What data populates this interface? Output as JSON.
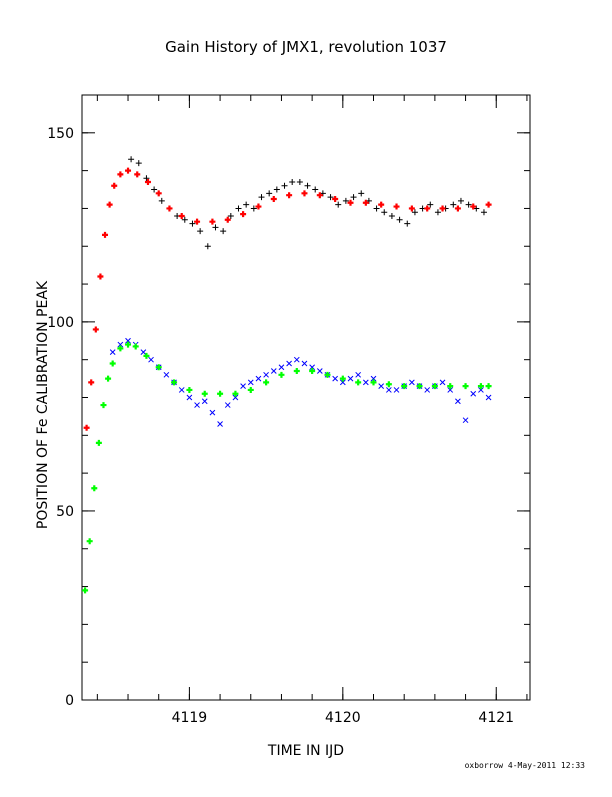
{
  "chart_data": {
    "type": "scatter",
    "title": "Gain History of JMX1, revolution 1037",
    "xlabel": "TIME IN IJD",
    "ylabel": "POSITION OF Fe CALIBRATION PEAK",
    "xlim": [
      4118.3,
      4121.22
    ],
    "ylim": [
      0,
      160
    ],
    "x_ticks": [
      4119,
      4120,
      4121
    ],
    "x_tick_labels": [
      "4119",
      "4120",
      "4121"
    ],
    "y_ticks": [
      0,
      50,
      100,
      150
    ],
    "y_tick_labels": [
      "0",
      "50",
      "100",
      "150"
    ],
    "grid": false,
    "legend": "none",
    "series": [
      {
        "role": "upper-peak-points",
        "marker": "plus",
        "color": "#000000",
        "x": [
          4118.62,
          4118.67,
          4118.72,
          4118.77,
          4118.82,
          4118.87,
          4118.92,
          4118.97,
          4119.02,
          4119.07,
          4119.12,
          4119.17,
          4119.22,
          4119.27,
          4119.32,
          4119.37,
          4119.42,
          4119.47,
          4119.52,
          4119.57,
          4119.62,
          4119.67,
          4119.72,
          4119.77,
          4119.82,
          4119.87,
          4119.92,
          4119.97,
          4120.02,
          4120.07,
          4120.12,
          4120.17,
          4120.22,
          4120.27,
          4120.32,
          4120.37,
          4120.42,
          4120.47,
          4120.52,
          4120.57,
          4120.62,
          4120.67,
          4120.72,
          4120.77,
          4120.82,
          4120.87,
          4120.92
        ],
        "y": [
          143,
          142,
          138,
          135,
          132,
          130,
          128,
          127,
          126,
          124,
          120,
          125,
          124,
          128,
          130,
          131,
          130,
          133,
          134,
          135,
          136,
          137,
          137,
          136,
          135,
          134,
          133,
          131,
          132,
          133,
          134,
          132,
          130,
          129,
          128,
          127,
          126,
          129,
          130,
          131,
          129,
          130,
          131,
          132,
          131,
          130,
          129
        ]
      },
      {
        "role": "upper-peak-fit",
        "marker": "plus",
        "color": "#ff0000",
        "x": [
          4118.33,
          4118.36,
          4118.39,
          4118.42,
          4118.45,
          4118.48,
          4118.51,
          4118.55,
          4118.6,
          4118.66,
          4118.73,
          4118.8,
          4118.87,
          4118.95,
          4119.05,
          4119.15,
          4119.25,
          4119.35,
          4119.45,
          4119.55,
          4119.65,
          4119.75,
          4119.85,
          4119.95,
          4120.05,
          4120.15,
          4120.25,
          4120.35,
          4120.45,
          4120.55,
          4120.65,
          4120.75,
          4120.85,
          4120.95
        ],
        "y": [
          72,
          84,
          98,
          112,
          123,
          131,
          136,
          139,
          140,
          139,
          137,
          134,
          130,
          128,
          126.5,
          126.5,
          127,
          128.5,
          130.5,
          132.5,
          133.5,
          134,
          133.5,
          132.5,
          131.5,
          131.5,
          131,
          130.5,
          130,
          130,
          130,
          130,
          130.5,
          131
        ]
      },
      {
        "role": "lower-peak-points",
        "marker": "cross",
        "color": "#0000ff",
        "x": [
          4118.5,
          4118.55,
          4118.6,
          4118.65,
          4118.7,
          4118.75,
          4118.8,
          4118.85,
          4118.9,
          4118.95,
          4119.0,
          4119.05,
          4119.1,
          4119.15,
          4119.2,
          4119.25,
          4119.3,
          4119.35,
          4119.4,
          4119.45,
          4119.5,
          4119.55,
          4119.6,
          4119.65,
          4119.7,
          4119.75,
          4119.8,
          4119.85,
          4119.9,
          4119.95,
          4120.0,
          4120.05,
          4120.1,
          4120.15,
          4120.2,
          4120.25,
          4120.3,
          4120.35,
          4120.4,
          4120.45,
          4120.5,
          4120.55,
          4120.6,
          4120.65,
          4120.7,
          4120.75,
          4120.8,
          4120.85,
          4120.9,
          4120.95
        ],
        "y": [
          92,
          94,
          95,
          94,
          92,
          90,
          88,
          86,
          84,
          82,
          80,
          78,
          79,
          76,
          73,
          78,
          80,
          83,
          84,
          85,
          86,
          87,
          88,
          89,
          90,
          89,
          88,
          87,
          86,
          85,
          84,
          85,
          86,
          84,
          85,
          83,
          82,
          82,
          83,
          84,
          83,
          82,
          83,
          84,
          82,
          79,
          74,
          81,
          82,
          80
        ]
      },
      {
        "role": "lower-peak-fit",
        "marker": "plus",
        "color": "#00ff00",
        "x": [
          4118.32,
          4118.35,
          4118.38,
          4118.41,
          4118.44,
          4118.47,
          4118.5,
          4118.55,
          4118.6,
          4118.65,
          4118.72,
          4118.8,
          4118.9,
          4119.0,
          4119.1,
          4119.2,
          4119.3,
          4119.4,
          4119.5,
          4119.6,
          4119.7,
          4119.8,
          4119.9,
          4120.0,
          4120.1,
          4120.2,
          4120.3,
          4120.4,
          4120.5,
          4120.6,
          4120.7,
          4120.8,
          4120.9,
          4120.95
        ],
        "y": [
          29,
          42,
          56,
          68,
          78,
          85,
          89,
          93,
          94,
          93.5,
          91,
          88,
          84,
          82,
          81,
          81,
          81,
          82,
          84,
          86,
          87,
          87,
          86,
          85,
          84,
          84,
          83.5,
          83,
          83,
          83,
          83,
          83,
          83,
          83
        ]
      }
    ]
  },
  "footer": {
    "stamp": "oxborrow  4-May-2011 12:33"
  }
}
